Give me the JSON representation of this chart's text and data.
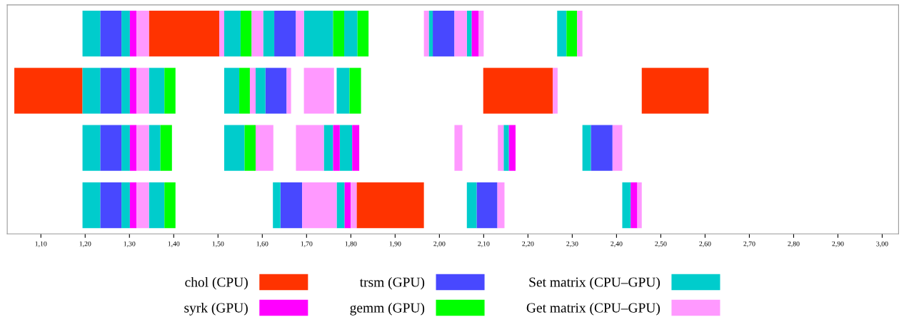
{
  "chart_data": {
    "type": "bar",
    "orientation": "horizontal",
    "categories": [
      null,
      null,
      null,
      null
    ],
    "xlim": [
      1.024,
      3.037
    ],
    "xticks": [
      {
        "value": 1.1,
        "label": "1,10"
      },
      {
        "value": 1.2,
        "label": "1,20"
      },
      {
        "value": 1.3,
        "label": "1,30"
      },
      {
        "value": 1.4,
        "label": "1,40"
      },
      {
        "value": 1.5,
        "label": "1,50"
      },
      {
        "value": 1.6,
        "label": "1,60"
      },
      {
        "value": 1.7,
        "label": "1,70"
      },
      {
        "value": 1.8,
        "label": "1,80"
      },
      {
        "value": 1.9,
        "label": "1,90"
      },
      {
        "value": 2.0,
        "label": "2,00"
      },
      {
        "value": 2.1,
        "label": "2,10"
      },
      {
        "value": 2.2,
        "label": "2,20"
      },
      {
        "value": 2.3,
        "label": "2,30"
      },
      {
        "value": 2.4,
        "label": "2,40"
      },
      {
        "value": 2.5,
        "label": "2,50"
      },
      {
        "value": 2.6,
        "label": "2,60"
      },
      {
        "value": 2.7,
        "label": "2,70"
      },
      {
        "value": 2.8,
        "label": "2,80"
      },
      {
        "value": 2.9,
        "label": "2,90"
      },
      {
        "value": 3.0,
        "label": "3,00"
      }
    ],
    "tick_labels": "x",
    "grid": false,
    "legend": "bottom",
    "series": [
      {
        "name": "chol (CPU)",
        "color": "#ff3300",
        "base": [
          1.344,
          1.04,
          null,
          1.813
        ],
        "values": [
          0.159,
          0.154,
          null,
          0.152
        ]
      },
      {
        "color": "#ff3300",
        "base": [
          null,
          2.099,
          null,
          null
        ],
        "values": [
          null,
          0.157,
          null,
          null
        ]
      },
      {
        "color": "#ff3300",
        "base": [
          null,
          2.457,
          null,
          null
        ],
        "values": [
          null,
          0.151,
          null,
          null
        ]
      },
      {
        "name": "trsm (GPU)",
        "color": "#4848ff",
        "base": [
          1.234,
          1.234,
          1.234,
          1.234
        ],
        "values": [
          0.048,
          0.048,
          0.048,
          0.048
        ]
      },
      {
        "color": "#4848ff",
        "base": [
          1.627,
          1.607,
          2.342,
          1.641
        ],
        "values": [
          0.049,
          0.048,
          0.049,
          0.049
        ]
      },
      {
        "color": "#4848ff",
        "base": [
          1.985,
          null,
          null,
          2.084
        ],
        "values": [
          0.049,
          null,
          null,
          0.047
        ]
      },
      {
        "name": "Set matrix (CPU–GPU)",
        "color": "#00cccc",
        "base": [
          1.194,
          1.194,
          1.194,
          1.194
        ],
        "values": [
          0.04,
          0.04,
          0.04,
          0.04
        ]
      },
      {
        "color": "#00cccc",
        "base": [
          1.282,
          1.282,
          1.282,
          1.282
        ],
        "values": [
          0.019,
          0.019,
          0.019,
          0.019
        ]
      },
      {
        "color": "#00cccc",
        "base": [
          1.514,
          1.344,
          1.344,
          1.344
        ],
        "values": [
          0.037,
          0.035,
          0.026,
          0.035
        ]
      },
      {
        "color": "#00cccc",
        "base": [
          1.602,
          1.514,
          1.514,
          1.624
        ],
        "values": [
          0.025,
          0.034,
          0.046,
          0.017
        ]
      },
      {
        "color": "#00cccc",
        "base": [
          1.694,
          1.585,
          1.739,
          1.768
        ],
        "values": [
          0.066,
          0.022,
          0.021,
          0.018
        ]
      },
      {
        "color": "#00cccc",
        "base": [
          1.785,
          1.768,
          1.775,
          2.062
        ],
        "values": [
          0.03,
          0.029,
          0.028,
          0.022
        ]
      },
      {
        "color": "#00cccc",
        "base": [
          1.976,
          null,
          2.145,
          2.413
        ],
        "values": [
          0.009,
          null,
          0.012,
          0.019
        ]
      },
      {
        "color": "#00cccc",
        "base": [
          2.062,
          null,
          2.323,
          null
        ],
        "values": [
          0.011,
          null,
          0.019,
          null
        ]
      },
      {
        "color": "#00cccc",
        "base": [
          2.266,
          null,
          null,
          null
        ],
        "values": [
          0.021,
          null,
          null,
          null
        ]
      },
      {
        "name": "syrk (GPU)",
        "color": "#ff00ff",
        "base": [
          1.301,
          1.301,
          1.301,
          1.301
        ],
        "values": [
          0.015,
          0.015,
          0.015,
          0.015
        ]
      },
      {
        "color": "#ff00ff",
        "base": [
          2.073,
          null,
          1.76,
          1.786
        ],
        "values": [
          0.016,
          null,
          0.015,
          0.014
        ]
      },
      {
        "color": "#ff00ff",
        "base": [
          null,
          null,
          1.803,
          2.432
        ],
        "values": [
          null,
          null,
          0.016,
          0.015
        ]
      },
      {
        "color": "#ff00ff",
        "base": [
          null,
          null,
          2.157,
          null
        ],
        "values": [
          null,
          null,
          0.015,
          null
        ]
      },
      {
        "name": "gemm (GPU)",
        "color": "#00ff00",
        "base": [
          1.551,
          1.379,
          1.37,
          1.379
        ],
        "values": [
          0.025,
          0.025,
          0.026,
          0.025
        ]
      },
      {
        "color": "#00ff00",
        "base": [
          1.76,
          1.548,
          1.56,
          null
        ],
        "values": [
          0.025,
          0.024,
          0.025,
          null
        ]
      },
      {
        "color": "#00ff00",
        "base": [
          1.815,
          1.797,
          null,
          null
        ],
        "values": [
          0.025,
          0.026,
          null,
          null
        ]
      },
      {
        "color": "#00ff00",
        "base": [
          2.287,
          null,
          null,
          null
        ],
        "values": [
          0.024,
          null,
          null,
          null
        ]
      },
      {
        "name": "Get matrix (CPU–GPU)",
        "color": "#ff99ff",
        "base": [
          1.316,
          1.316,
          1.316,
          1.316
        ],
        "values": [
          0.028,
          0.028,
          0.028,
          0.028
        ]
      },
      {
        "color": "#ff99ff",
        "base": [
          1.503,
          1.572,
          1.585,
          1.69
        ],
        "values": [
          0.011,
          0.013,
          0.04,
          0.078
        ]
      },
      {
        "color": "#ff99ff",
        "base": [
          1.576,
          1.655,
          1.676,
          1.8
        ],
        "values": [
          0.026,
          0.01,
          0.063,
          0.013
        ]
      },
      {
        "color": "#ff99ff",
        "base": [
          1.676,
          1.694,
          2.034,
          2.131
        ],
        "values": [
          0.018,
          0.068,
          0.018,
          0.016
        ]
      },
      {
        "color": "#ff99ff",
        "base": [
          1.965,
          2.256,
          2.132,
          2.447
        ],
        "values": [
          0.011,
          0.011,
          0.013,
          0.01
        ]
      },
      {
        "color": "#ff99ff",
        "base": [
          2.034,
          null,
          2.391,
          null
        ],
        "values": [
          0.028,
          null,
          0.022,
          null
        ]
      },
      {
        "color": "#ff99ff",
        "base": [
          2.089,
          null,
          null,
          null
        ],
        "values": [
          0.011,
          null,
          null,
          null
        ]
      },
      {
        "color": "#ff99ff",
        "base": [
          2.311,
          null,
          null,
          null
        ],
        "values": [
          0.012,
          null,
          null,
          null
        ]
      }
    ]
  }
}
